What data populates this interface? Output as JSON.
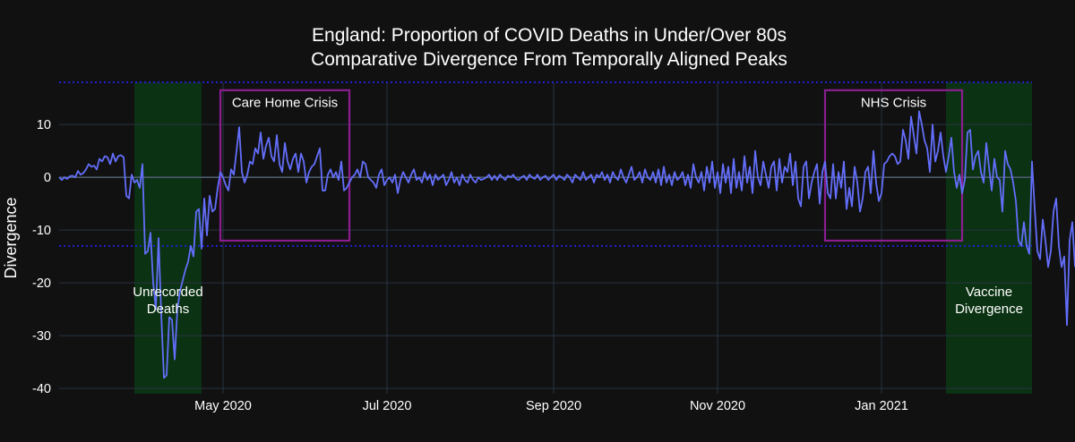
{
  "chart_data": {
    "type": "line",
    "title": "England: Proportion of COVID Deaths in Under/Over 80s",
    "subtitle": "Comparative Divergence From Temporally Aligned Peaks",
    "ylabel": "Divergence",
    "xlabel": "",
    "x_start": "2020-03-01",
    "x_end": "2021-02-26",
    "ylim": [
      -41,
      18
    ],
    "grid": true,
    "legend": false,
    "x_ticks": [
      {
        "date": "2020-05-01",
        "label": "May 2020"
      },
      {
        "date": "2020-07-01",
        "label": "Jul 2020"
      },
      {
        "date": "2020-09-01",
        "label": "Sep 2020"
      },
      {
        "date": "2020-11-01",
        "label": "Nov 2020"
      },
      {
        "date": "2021-01-01",
        "label": "Jan 2021"
      }
    ],
    "y_ticks": [
      10,
      0,
      -10,
      -20,
      -30,
      -40
    ],
    "threshold_lines": [
      18,
      -13
    ],
    "series": [
      {
        "color": "#636efa",
        "values": [
          0,
          -0.5,
          0,
          -0.3,
          0.2,
          0.3,
          0,
          1.2,
          0.5,
          0.8,
          1.5,
          2.5,
          2,
          2.2,
          1.5,
          3.5,
          3,
          4,
          3.8,
          2.5,
          4.5,
          3,
          4,
          4.2,
          3.8,
          -3.5,
          -4,
          0.5,
          -1,
          -0.5,
          -2,
          2.5,
          -14.5,
          -14,
          -10.5,
          -20,
          -25,
          -11.5,
          -26,
          -38,
          -37.5,
          -26.5,
          -27,
          -34.5,
          -25,
          -21.5,
          -19.5,
          -17.5,
          -16,
          -13,
          -15,
          -6.5,
          -6,
          -13.5,
          -4,
          -11,
          -3.5,
          -6.5,
          -6,
          -2,
          1,
          0,
          -1.5,
          -2.5,
          1.5,
          0.5,
          5,
          9.5,
          1,
          -1,
          0.5,
          3,
          2.5,
          5.5,
          4.5,
          8.5,
          3.5,
          6,
          7.5,
          4,
          3,
          8,
          2.5,
          1,
          6.5,
          3,
          1.5,
          3.5,
          4.5,
          1,
          4.5,
          3,
          -1,
          1,
          2,
          2.5,
          4,
          5.5,
          -2.5,
          -2.5,
          0.5,
          1.5,
          0,
          1,
          -0.5,
          3,
          -2.5,
          -2,
          -1,
          0,
          0.5,
          1.5,
          0,
          3,
          2.5,
          0,
          -0.5,
          -1,
          -2,
          0.5,
          1.5,
          -1.5,
          -0.5,
          0,
          -1,
          0.5,
          -3,
          -0.5,
          1,
          0,
          -1,
          0.5,
          1.5,
          -0.5,
          0,
          -1,
          1,
          -0.5,
          0.5,
          -1.5,
          0.5,
          -0.5,
          0,
          0.5,
          -1.5,
          -0.5,
          1,
          -1,
          0,
          -1.5,
          0.5,
          -0.5,
          -1,
          0.5,
          -0.5,
          -1,
          0,
          -0.5,
          -0.3,
          0,
          0.5,
          -0.5,
          0.3,
          -0.5,
          0.5,
          0,
          -0.5,
          0.3,
          0,
          0.5,
          -0.3,
          -0.5,
          0,
          0.3,
          -0.5,
          0.5,
          0,
          -0.3,
          0.5,
          -0.5,
          0,
          0.3,
          -0.5,
          0,
          0.5,
          -0.5,
          0.3,
          0,
          -0.5,
          0.5,
          0,
          -1,
          0.5,
          0,
          -0.5,
          1,
          -0.5,
          0,
          0.5,
          -1,
          0.5,
          0,
          1,
          -0.5,
          0.5,
          -1,
          1,
          0,
          -0.5,
          1.5,
          0,
          -1,
          0.5,
          2,
          -0.5,
          0,
          1,
          -1,
          1.5,
          0,
          -0.5,
          1,
          -1,
          1.5,
          -1.5,
          2,
          -1,
          0.5,
          -1.5,
          1,
          -0.5,
          0,
          1,
          -1.5,
          0.5,
          -2,
          2.5,
          0,
          -1,
          1,
          -2.5,
          2,
          -1,
          3,
          -2,
          1,
          -3,
          2.5,
          -1,
          2,
          -3,
          3.5,
          -2,
          1,
          -2.5,
          4,
          -1,
          2,
          -3,
          5,
          0,
          -1.5,
          3,
          0.5,
          -2,
          2,
          3,
          -2.5,
          3.5,
          -1,
          2,
          1,
          4.5,
          -1.5,
          3,
          -4,
          -5.5,
          2,
          3,
          -4,
          -1,
          1,
          2.5,
          -5,
          1,
          3,
          -3,
          -4,
          2.5,
          -4,
          1,
          -2,
          3,
          -6,
          -2,
          -5.5,
          2,
          -1,
          -6.5,
          -4,
          1,
          2,
          -3,
          5,
          -1,
          -4.5,
          -3,
          2.5,
          3,
          4,
          4.5,
          4,
          2.5,
          3,
          9,
          7,
          3.5,
          11.5,
          8,
          4.5,
          12.5,
          10,
          7,
          5.5,
          1,
          10,
          3,
          5,
          8.5,
          4,
          1,
          4,
          7.5,
          1,
          -2,
          0.5,
          -3,
          -0.5,
          8.5,
          9,
          1.5,
          4,
          5,
          1,
          -1,
          6.5,
          2,
          -2.5,
          3.5,
          0,
          -0.5,
          -6.5,
          5,
          2.5,
          1.5,
          -1,
          -4.5,
          -12,
          -13,
          -8.5,
          -13,
          -14.5,
          3,
          -6,
          -14,
          -15.5,
          -8,
          -12,
          -17,
          -14,
          -6.5,
          -4,
          -13,
          -17,
          -15,
          -28,
          -12,
          -8.5,
          -17
        ]
      }
    ],
    "regions": [
      {
        "type": "shade",
        "x0": "2020-03-29",
        "x1": "2020-04-23",
        "color": "#0b3212",
        "label": [
          "Unrecorded",
          "Deaths"
        ],
        "label_y": -22.5
      },
      {
        "type": "shade",
        "x0": "2021-01-25",
        "x1": "2021-02-26",
        "color": "#0b3212",
        "label": [
          "Vaccine",
          "Divergence"
        ],
        "label_y": -22.5
      },
      {
        "type": "box",
        "x0": "2020-04-30",
        "x1": "2020-06-17",
        "y0": -12,
        "y1": 16.5,
        "color": "#8a1e8f",
        "label": [
          "Care Home Crisis"
        ],
        "label_y": 13.3
      },
      {
        "type": "box",
        "x0": "2020-12-11",
        "x1": "2021-01-31",
        "y0": -12,
        "y1": 16.5,
        "color": "#8a1e8f",
        "label": [
          "NHS Crisis"
        ],
        "label_y": 13.3
      }
    ]
  }
}
